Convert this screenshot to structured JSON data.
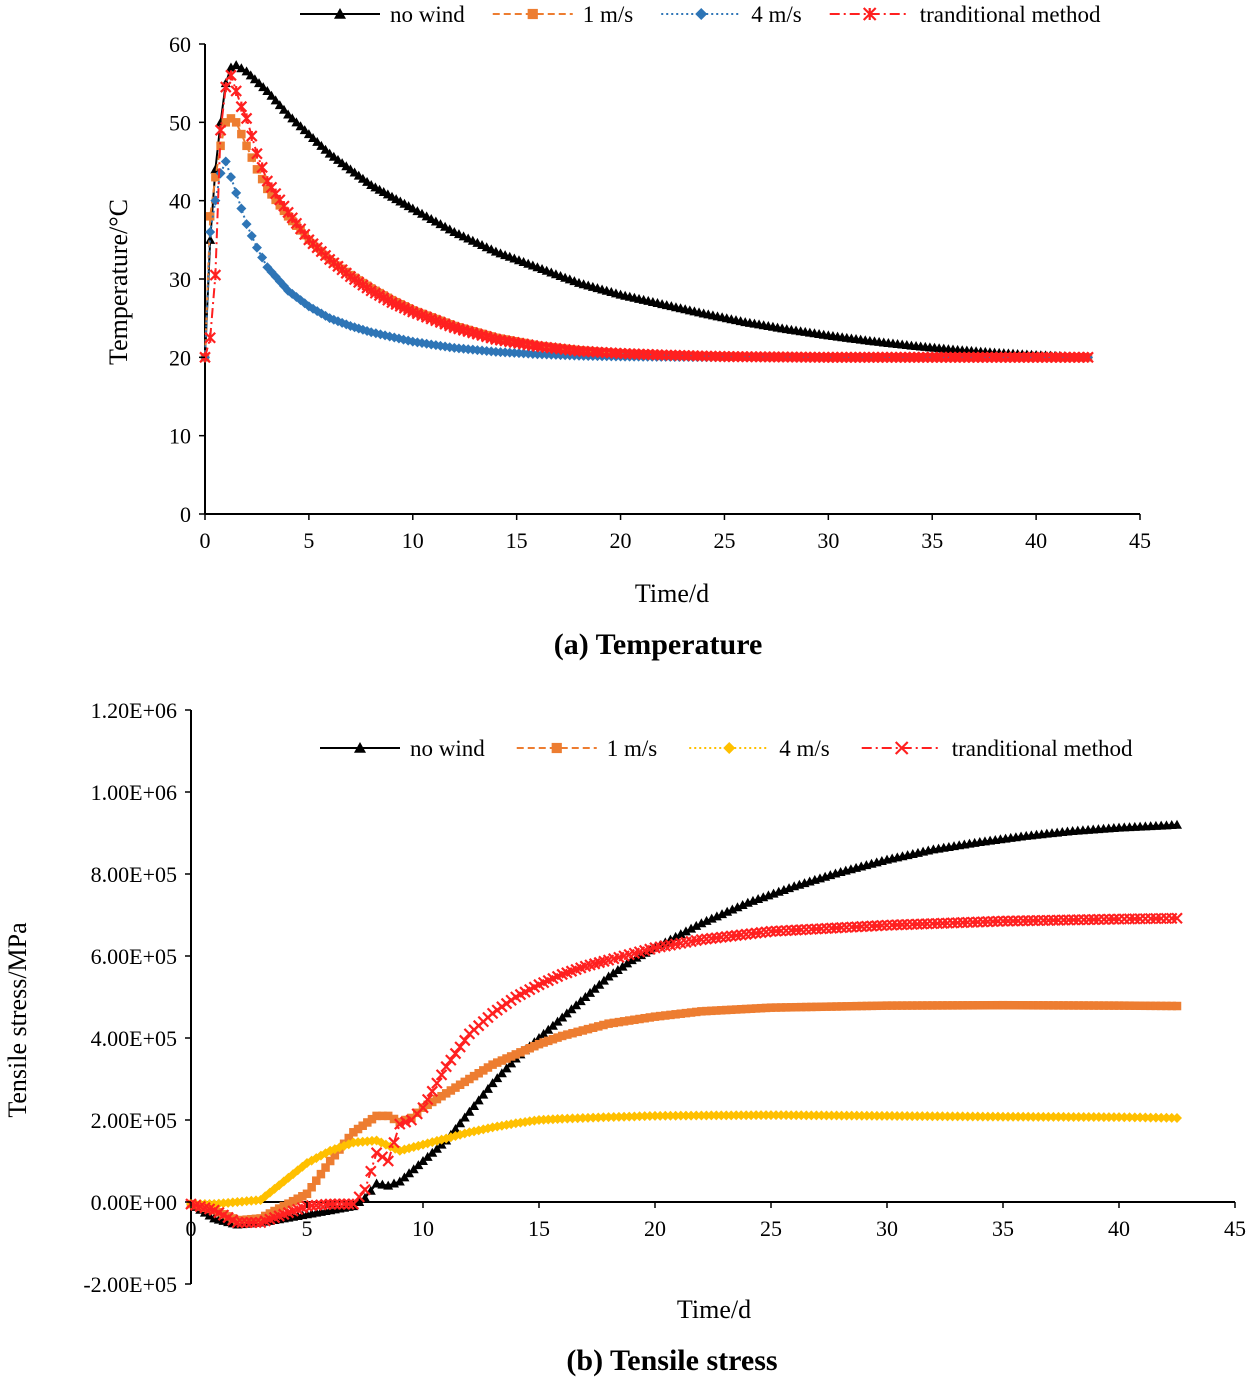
{
  "chart_data": [
    {
      "type": "line",
      "id": "temperature",
      "caption": "(a) Temperature",
      "xlabel": "Time/d",
      "ylabel": "Temperature/°C",
      "xlim": [
        0,
        45
      ],
      "ylim": [
        0,
        60
      ],
      "xticks": [
        0,
        5,
        10,
        15,
        20,
        25,
        30,
        35,
        40,
        45
      ],
      "yticks": [
        0,
        10,
        20,
        30,
        40,
        50,
        60
      ],
      "xtick_labels": [
        "0",
        "5",
        "10",
        "15",
        "20",
        "25",
        "30",
        "35",
        "40",
        "45"
      ],
      "ytick_labels": [
        "0",
        "10",
        "20",
        "30",
        "40",
        "50",
        "60"
      ],
      "grid": false,
      "legend_position": "top",
      "series": [
        {
          "name": "no wind",
          "color": "#000000",
          "marker": "triangle",
          "line": "solid",
          "x": [
            0,
            0.25,
            0.5,
            0.75,
            1.0,
            1.25,
            1.5,
            2,
            3,
            4,
            5,
            6,
            7,
            8,
            9,
            10,
            12,
            14,
            16,
            18,
            20,
            22,
            24,
            26,
            28,
            30,
            32,
            34,
            36,
            38,
            40,
            42.5
          ],
          "y": [
            20,
            35,
            44,
            50,
            55,
            57,
            57.3,
            56.5,
            54,
            51,
            48.5,
            46,
            44,
            42,
            40.5,
            39,
            36,
            33.5,
            31.5,
            29.5,
            28,
            26.8,
            25.6,
            24.5,
            23.6,
            22.8,
            22.1,
            21.5,
            21,
            20.6,
            20.3,
            20
          ]
        },
        {
          "name": "1 m/s",
          "color": "#ed7d31",
          "marker": "square",
          "line": "dashed",
          "x": [
            0,
            0.25,
            0.5,
            0.75,
            1.0,
            1.25,
            1.5,
            2,
            2.5,
            3,
            4,
            5,
            6,
            7,
            8,
            9,
            10,
            12,
            14,
            16,
            18,
            20,
            22,
            25,
            30,
            35,
            42.5
          ],
          "y": [
            20,
            38,
            43,
            47,
            50,
            50.5,
            50,
            47,
            44,
            41.5,
            38,
            35,
            32.5,
            30.5,
            28.8,
            27.3,
            26,
            24,
            22.5,
            21.5,
            20.9,
            20.5,
            20.3,
            20.1,
            20,
            20,
            20
          ]
        },
        {
          "name": "4 m/s",
          "color": "#2e75b6",
          "marker": "diamond",
          "line": "dotted",
          "x": [
            0,
            0.25,
            0.5,
            0.75,
            1.0,
            1.25,
            1.5,
            2,
            2.5,
            3,
            4,
            5,
            6,
            7,
            8,
            10,
            12,
            14,
            16,
            18,
            20,
            25,
            30,
            35,
            42.5
          ],
          "y": [
            20,
            36,
            40,
            43.5,
            45,
            43,
            41,
            37,
            34,
            31.5,
            28.5,
            26.5,
            25,
            24,
            23.2,
            22,
            21.2,
            20.7,
            20.4,
            20.2,
            20.1,
            20,
            20,
            20,
            20
          ]
        },
        {
          "name": "tranditional method",
          "color": "#ff2020",
          "marker": "asterisk",
          "line": "dashdot",
          "x": [
            0,
            0.25,
            0.5,
            0.75,
            1.0,
            1.25,
            1.5,
            1.75,
            2,
            2.5,
            3,
            4,
            5,
            6,
            7,
            8,
            9,
            10,
            12,
            14,
            16,
            18,
            20,
            22,
            25,
            30,
            35,
            42.5
          ],
          "y": [
            20,
            22.5,
            30.5,
            49,
            54.5,
            56,
            54,
            52,
            50.5,
            46,
            42.5,
            38.5,
            35,
            32.5,
            30.3,
            28.5,
            27,
            25.8,
            23.8,
            22.3,
            21.4,
            20.8,
            20.5,
            20.3,
            20.1,
            20,
            20,
            20
          ]
        }
      ]
    },
    {
      "type": "line",
      "id": "tensile-stress",
      "caption": "(b) Tensile stress",
      "xlabel": "Time/d",
      "ylabel": "Tensile stress/MPa",
      "xlim": [
        0,
        45
      ],
      "ylim": [
        -200000,
        1200000
      ],
      "xticks": [
        0,
        5,
        10,
        15,
        20,
        25,
        30,
        35,
        40,
        45
      ],
      "yticks": [
        -200000,
        0,
        200000,
        400000,
        600000,
        800000,
        1000000,
        1200000
      ],
      "xtick_labels": [
        "0",
        "5",
        "10",
        "15",
        "20",
        "25",
        "30",
        "35",
        "40",
        "45"
      ],
      "ytick_labels": [
        "-2.00E+05",
        "0.00E+00",
        "2.00E+05",
        "4.00E+05",
        "6.00E+05",
        "8.00E+05",
        "1.00E+06",
        "1.20E+06"
      ],
      "grid": false,
      "legend_position": "top-right",
      "series": [
        {
          "name": "no wind",
          "color": "#000000",
          "marker": "triangle",
          "line": "solid",
          "x": [
            0,
            1,
            2,
            3,
            4,
            5,
            6,
            7,
            7.5,
            8,
            8.5,
            9,
            10,
            11,
            12,
            13,
            14,
            15,
            16,
            17,
            18,
            19,
            20,
            22,
            24,
            26,
            28,
            30,
            32,
            34,
            36,
            38,
            40,
            42.5
          ],
          "y": [
            -5000,
            -40000,
            -55000,
            -50000,
            -40000,
            -30000,
            -20000,
            -10000,
            10000,
            45000,
            40000,
            50000,
            100000,
            150000,
            220000,
            290000,
            350000,
            400000,
            450000,
            500000,
            550000,
            590000,
            620000,
            680000,
            730000,
            770000,
            805000,
            835000,
            860000,
            878000,
            893000,
            905000,
            913000,
            920000
          ]
        },
        {
          "name": "1 m/s",
          "color": "#ed7d31",
          "marker": "square",
          "line": "dashed",
          "x": [
            0,
            1,
            2,
            3,
            4,
            5,
            6,
            7,
            8,
            8.5,
            9,
            9.5,
            10,
            11,
            12,
            13,
            14,
            15,
            16,
            18,
            20,
            22,
            25,
            30,
            35,
            40,
            42.5
          ],
          "y": [
            -5000,
            -20000,
            -45000,
            -40000,
            -10000,
            20000,
            100000,
            170000,
            210000,
            210000,
            195000,
            205000,
            230000,
            265000,
            300000,
            335000,
            360000,
            385000,
            405000,
            435000,
            452000,
            465000,
            474000,
            479000,
            480000,
            479000,
            478000
          ]
        },
        {
          "name": "4 m/s",
          "color": "#ffc000",
          "marker": "diamond",
          "line": "dotted",
          "x": [
            0,
            1,
            2,
            3,
            4,
            5,
            6,
            7,
            8,
            9,
            10,
            11,
            12,
            13,
            14,
            15,
            16,
            18,
            20,
            22,
            25,
            30,
            35,
            40,
            42.5
          ],
          "y": [
            -5000,
            -5000,
            0,
            5000,
            50000,
            95000,
            125000,
            145000,
            150000,
            125000,
            140000,
            155000,
            170000,
            182000,
            192000,
            200000,
            203000,
            207000,
            210000,
            211000,
            212000,
            210000,
            208000,
            207000,
            205000
          ]
        },
        {
          "name": "tranditional method",
          "color": "#ff2020",
          "marker": "x",
          "line": "dashdot",
          "x": [
            0,
            1,
            2,
            3,
            4,
            5,
            6,
            7,
            7.5,
            8,
            8.5,
            9,
            9.5,
            10,
            11,
            12,
            13,
            14,
            15,
            16,
            17,
            18,
            20,
            22,
            25,
            30,
            35,
            40,
            42.5
          ],
          "y": [
            -5000,
            -20000,
            -50000,
            -50000,
            -30000,
            -10000,
            -5000,
            -5000,
            30000,
            120000,
            100000,
            190000,
            200000,
            230000,
            330000,
            410000,
            460000,
            500000,
            530000,
            555000,
            575000,
            590000,
            620000,
            640000,
            660000,
            675000,
            685000,
            690000,
            692000
          ]
        }
      ]
    }
  ]
}
